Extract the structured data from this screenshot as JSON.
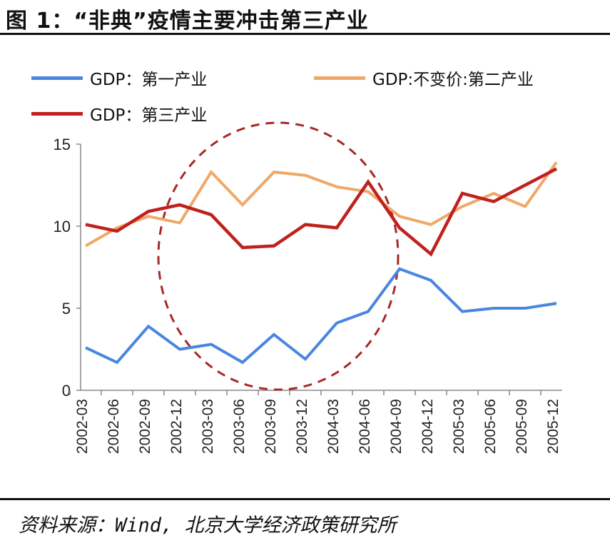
{
  "title": "图 1：“非典”疫情主要冲击第三产业",
  "source": "资料来源：Wind, 北京大学经济政策研究所",
  "chart_data": {
    "type": "line",
    "title": "图 1：“非典”疫情主要冲击第三产业",
    "xlabel": "",
    "ylabel": "",
    "ylim": [
      0,
      15
    ],
    "yticks": [
      "0",
      "5",
      "10",
      "15"
    ],
    "legend_position": "top",
    "grid": false,
    "annotation": "dashed circle highlighting 2002-12 to 2004-09",
    "categories": [
      "2002-03",
      "2002-06",
      "2002-09",
      "2002-12",
      "2003-03",
      "2003-06",
      "2003-09",
      "2003-12",
      "2004-03",
      "2004-06",
      "2004-09",
      "2004-12",
      "2005-03",
      "2005-06",
      "2005-09",
      "2005-12"
    ],
    "series": [
      {
        "name": "GDP：第一产业",
        "color": "#4a86e0",
        "values": [
          2.6,
          1.7,
          3.9,
          2.5,
          2.8,
          1.7,
          3.4,
          1.9,
          4.1,
          4.8,
          7.4,
          6.7,
          4.8,
          5.0,
          5.0,
          5.3
        ]
      },
      {
        "name": "GDP:不变价:第二产业",
        "color": "#f0a868",
        "values": [
          8.8,
          9.9,
          10.6,
          10.2,
          13.3,
          11.3,
          13.3,
          13.1,
          12.4,
          12.1,
          10.6,
          10.1,
          11.2,
          12.0,
          11.2,
          13.9
        ]
      },
      {
        "name": "GDP：第三产业",
        "color": "#c0201e",
        "values": [
          10.1,
          9.7,
          10.9,
          11.3,
          10.7,
          8.7,
          8.8,
          10.1,
          9.9,
          12.7,
          9.9,
          8.3,
          12.0,
          11.5,
          12.5,
          13.5
        ]
      }
    ]
  }
}
